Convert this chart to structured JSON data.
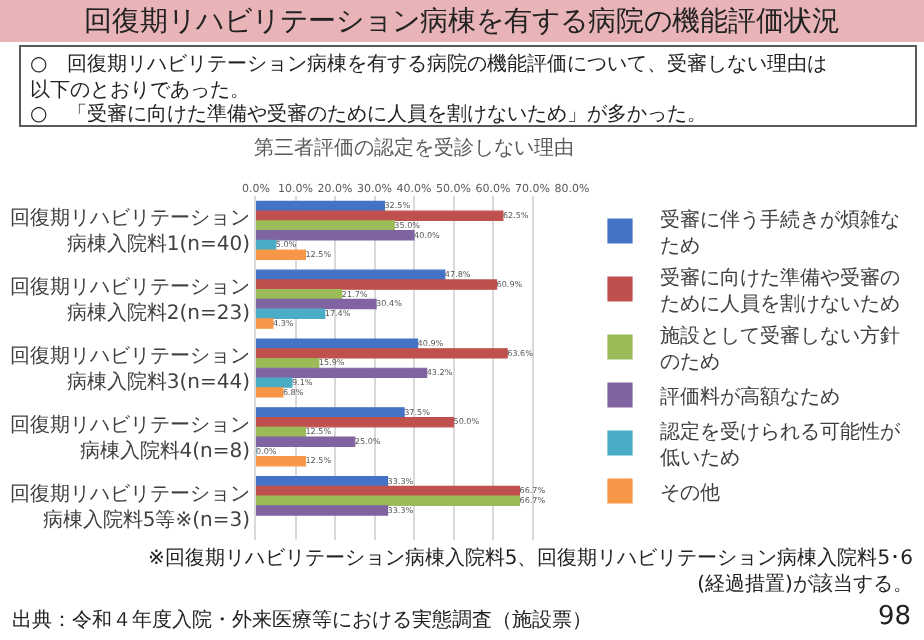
{
  "chart_data": {
    "type": "bar",
    "orientation": "horizontal",
    "title": "回復期リハビリテーション病棟を有する病院の機能評価状況",
    "subtitle": "第三者評価の認定を受診しない理由",
    "categories": [
      "回復期リハビリテーション病棟入院料1(n=40)",
      "回復期リハビリテーション病棟入院料2(n=23)",
      "回復期リハビリテーション病棟入院料3(n=44)",
      "回復期リハビリテーション病棟入院料4(n=8)",
      "回復期リハビリテーション病棟入院料5等※(n=3)"
    ],
    "series": [
      {
        "name": "受審に伴う手続きが煩雑なため",
        "color": "#4472c4",
        "values": [
          32.5,
          47.8,
          40.9,
          37.5,
          33.3
        ],
        "value_labels": [
          "32.5%",
          "47.8%",
          "40.9%",
          "37.5%",
          "33.3%"
        ]
      },
      {
        "name": "受審に向けた準備や受審のために人員を割けないため",
        "color": "#c0504d",
        "values": [
          62.5,
          60.9,
          63.6,
          50.0,
          66.7
        ],
        "value_labels": [
          "62.5%",
          "60.9%",
          "63.6%",
          "50.0%",
          "66.7%"
        ]
      },
      {
        "name": "施設として受審しない方針のため",
        "color": "#9bbb59",
        "values": [
          35.0,
          21.7,
          15.9,
          12.5,
          66.7
        ],
        "value_labels": [
          "35.0%",
          "21.7%",
          "15.9%",
          "12.5%",
          "66.7%"
        ]
      },
      {
        "name": "評価料が高額なため",
        "color": "#8064a2",
        "values": [
          40.0,
          30.4,
          43.2,
          25.0,
          33.3
        ],
        "value_labels": [
          "40.0%",
          "30.4%",
          "43.2%",
          "25.0%",
          "33.3%"
        ]
      },
      {
        "name": "認定を受けられる可能性が低いため",
        "color": "#4bacc6",
        "values": [
          5.0,
          17.4,
          9.1,
          0.0,
          null
        ],
        "value_labels": [
          "5.0%",
          "17.4%",
          "9.1%",
          "0.0%",
          null
        ]
      },
      {
        "name": "その他",
        "color": "#f79646",
        "values": [
          12.5,
          4.3,
          6.8,
          12.5,
          null
        ],
        "value_labels": [
          "12.5%",
          "4.3%",
          "6.8%",
          "12.5%",
          null
        ]
      }
    ],
    "xlim": [
      0,
      80
    ],
    "xticks": [
      {
        "value": 0,
        "label": "0.0%"
      },
      {
        "value": 10,
        "label": "10.0%"
      },
      {
        "value": 20,
        "label": "20.0%"
      },
      {
        "value": 30,
        "label": "30.0%"
      },
      {
        "value": 40,
        "label": "40.0%"
      },
      {
        "value": 50,
        "label": "50.0%"
      },
      {
        "value": 60,
        "label": "60.0%"
      },
      {
        "value": 70,
        "label": "70.0%"
      },
      {
        "value": 80,
        "label": "80.0%"
      }
    ],
    "grid": "x",
    "legend": "right",
    "annotations": [
      "○　回復期リハビリテーション病棟を有する病院の機能評価について、受審しない理由は以下のとおりであった。",
      "○　「受審に向けた準備や受審のために人員を割けないため」が多かった。",
      "※回復期リハビリテーション病棟入院料5、回復期リハビリテーション病棟入院料5･6(経過措置)が該当する。",
      "出典：令和４年度入院・外来医療等における実態調査（施設票）",
      "98"
    ]
  }
}
